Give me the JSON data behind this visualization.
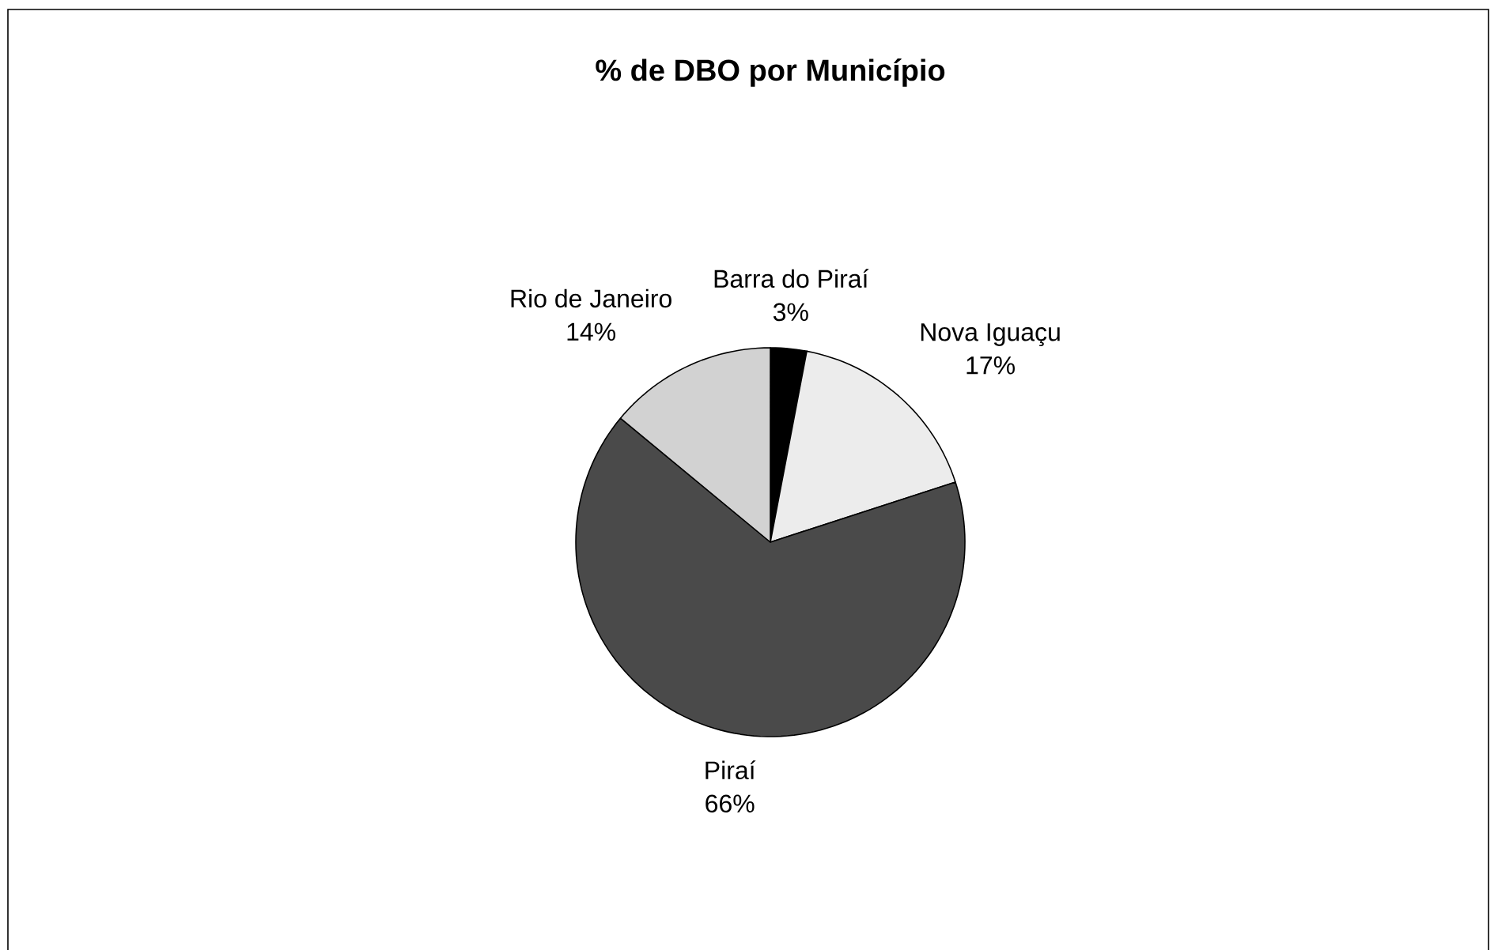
{
  "chart_data": {
    "type": "pie",
    "title": "% de DBO por Município",
    "categories": [
      "Barra do Piraí",
      "Nova Iguaçu",
      "Piraí",
      "Rio de Janeiro"
    ],
    "values": [
      3,
      17,
      66,
      14
    ],
    "value_labels": [
      "3%",
      "17%",
      "66%",
      "14%"
    ],
    "colors": [
      "#000000",
      "#ececec",
      "#4a4a4a",
      "#d2d2d2"
    ]
  }
}
